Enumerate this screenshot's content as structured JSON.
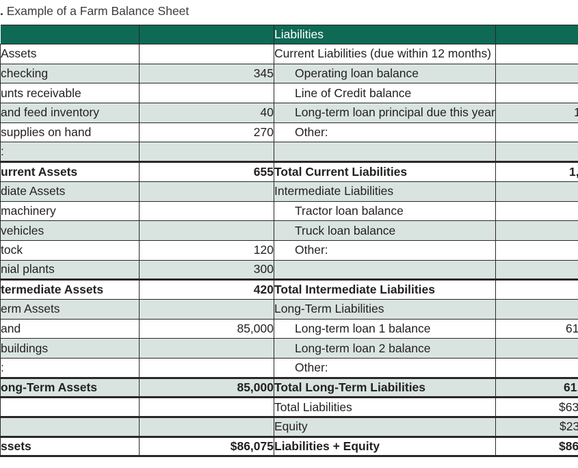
{
  "title": {
    "prefix": ".",
    "text": "Example of a Farm Balance Sheet"
  },
  "colors": {
    "header_bg": "#0e6955",
    "stripe_bg": "#d9e4e0",
    "border": "#2a2627",
    "header_text": "#ffffff"
  },
  "header": {
    "assets_label": "",
    "assets_value_label": "",
    "liabilities_label": "Liabilities",
    "liabilities_value_label": ""
  },
  "rows": [
    {
      "left_label": "Assets",
      "left_value": "",
      "right_label": "Current Liabilities (due within 12 months)",
      "right_value": "",
      "right_subitem": false,
      "bold": false,
      "section_break": false
    },
    {
      "left_label": "checking",
      "left_value": "345",
      "right_label": "Operating loan balance",
      "right_value": "",
      "right_subitem": true,
      "bold": false,
      "section_break": false
    },
    {
      "left_label": "unts receivable",
      "left_value": "",
      "right_label": "Line of Credit balance",
      "right_value": "",
      "right_subitem": true,
      "bold": false,
      "section_break": false
    },
    {
      "left_label": "and feed inventory",
      "left_value": "40",
      "right_label": "Long-term loan principal due this year",
      "right_value": "1",
      "right_subitem": true,
      "bold": false,
      "section_break": false
    },
    {
      "left_label": "supplies on hand",
      "left_value": "270",
      "right_label": "Other:",
      "right_value": "",
      "right_subitem": true,
      "bold": false,
      "section_break": false
    },
    {
      "left_label": ":",
      "left_value": "",
      "right_label": "",
      "right_value": "",
      "right_subitem": false,
      "bold": false,
      "section_break": false
    },
    {
      "left_label": "urrent Assets",
      "left_value": "655",
      "right_label": "Total Current Liabilities",
      "right_value": "1,",
      "right_subitem": false,
      "bold": true,
      "section_break": true
    },
    {
      "left_label": "diate Assets",
      "left_value": "",
      "right_label": "Intermediate Liabilities",
      "right_value": "",
      "right_subitem": false,
      "bold": false,
      "section_break": false
    },
    {
      "left_label": "machinery",
      "left_value": "",
      "right_label": "Tractor loan balance",
      "right_value": "",
      "right_subitem": true,
      "bold": false,
      "section_break": false
    },
    {
      "left_label": "vehicles",
      "left_value": "",
      "right_label": "Truck loan balance",
      "right_value": "",
      "right_subitem": true,
      "bold": false,
      "section_break": false
    },
    {
      "left_label": "tock",
      "left_value": "120",
      "right_label": "Other:",
      "right_value": "",
      "right_subitem": true,
      "bold": false,
      "section_break": false
    },
    {
      "left_label": "nial plants",
      "left_value": "300",
      "right_label": "",
      "right_value": "",
      "right_subitem": false,
      "bold": false,
      "section_break": false
    },
    {
      "left_label": "termediate Assets",
      "left_value": "420",
      "right_label": "Total Intermediate Liabilities",
      "right_value": "",
      "right_subitem": false,
      "bold": true,
      "section_break": true
    },
    {
      "left_label": "erm Assets",
      "left_value": "",
      "right_label": "Long-Term Liabilities",
      "right_value": "",
      "right_subitem": false,
      "bold": false,
      "section_break": false
    },
    {
      "left_label": "and",
      "left_value": "85,000",
      "right_label": "Long-term loan 1 balance",
      "right_value": "61",
      "right_subitem": true,
      "bold": false,
      "section_break": false
    },
    {
      "left_label": "buildings",
      "left_value": "",
      "right_label": "Long-term loan 2 balance",
      "right_value": "",
      "right_subitem": true,
      "bold": false,
      "section_break": false
    },
    {
      "left_label": ":",
      "left_value": "",
      "right_label": "Other:",
      "right_value": "",
      "right_subitem": true,
      "bold": false,
      "section_break": false
    },
    {
      "left_label": "ong-Term Assets",
      "left_value": "85,000",
      "right_label": "Total Long-Term Liabilities",
      "right_value": "61,",
      "right_subitem": false,
      "bold": true,
      "section_break": true
    },
    {
      "left_label": "",
      "left_value": "",
      "right_label": "Total Liabilities",
      "right_value": "$63",
      "right_subitem": false,
      "bold": false,
      "section_break": true
    },
    {
      "left_label": "",
      "left_value": "",
      "right_label": "Equity",
      "right_value": "$23",
      "right_subitem": false,
      "bold": false,
      "section_break": true
    },
    {
      "left_label": "ssets",
      "left_value": "$86,075",
      "right_label": "Liabilities + Equity",
      "right_value": "$86",
      "right_subitem": false,
      "bold": true,
      "section_break": true
    }
  ]
}
